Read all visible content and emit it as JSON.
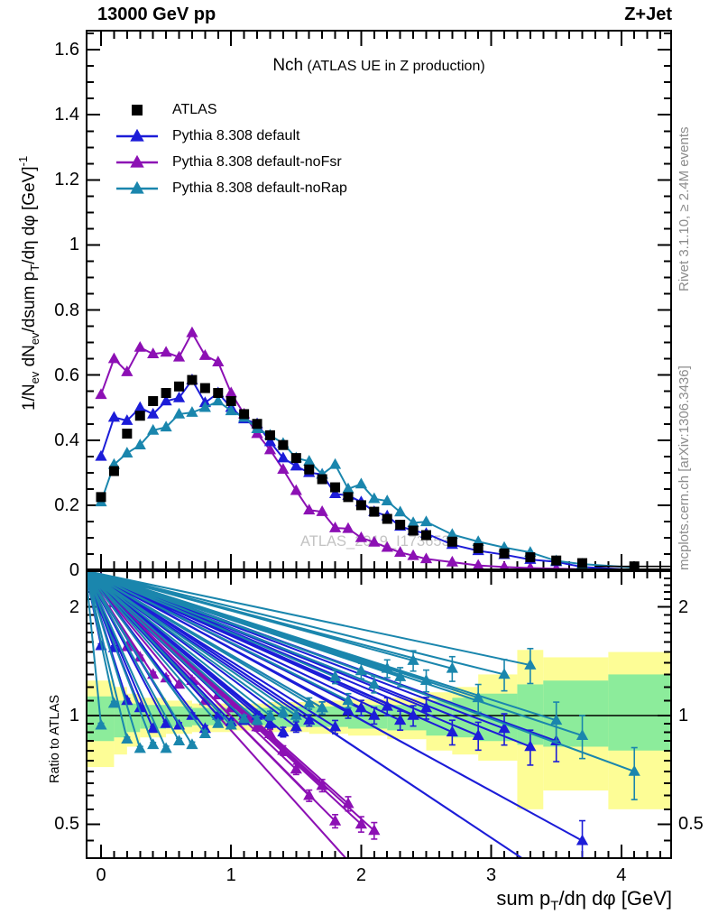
{
  "header": {
    "left": "13000 GeV pp",
    "right": "Z+Jet"
  },
  "title": {
    "main": "Nch",
    "paren": " (ATLAS UE in Z production)"
  },
  "watermark": "ATLAS_2019_I1736531",
  "notes": {
    "rivet": "Rivet 3.1.10, ≥ 2.4M events",
    "mcplots": "mcplots.cern.ch [arXiv:1306.3436]"
  },
  "labels": {
    "ylabel": {
      "pre": "1/N",
      "sub1": "ev",
      "mid1": " dN",
      "sub2": "ev",
      "mid2": "/dsum p",
      "sub3": "T",
      "mid3": "/dη dφ  [GeV]",
      "sup": "-1"
    },
    "xlabel": {
      "pre": "sum p",
      "sub": "T",
      "post": "/dη dφ [GeV]"
    },
    "ratio_label": "Ratio to ATLAS"
  },
  "colors": {
    "blue": "#1c1cd8",
    "purple": "#8c10b4",
    "teal": "#1a86ad",
    "band_yellow": "#fdfd96",
    "band_green": "#8cec9b",
    "gray_note": "#8c8c8c",
    "watermark": "#c3c3c3",
    "black": "#000000"
  },
  "chart_data": {
    "type": "line",
    "title": "Nch (ATLAS UE in Z production)",
    "xlabel": "sum pT/dη dφ [GeV]",
    "ylabel": "1/Nev dNev/dsum pT/dη dφ [GeV]^-1",
    "ratio_ylabel": "Ratio to ATLAS",
    "legend_position": "top-left",
    "x_axis": {
      "lim": [
        -0.12,
        4.39
      ],
      "ticks": [
        0,
        1,
        2,
        3,
        4
      ],
      "tick_labels": [
        "0",
        "1",
        "2",
        "3",
        "4"
      ],
      "minor_step": 0.1
    },
    "main_axis": {
      "lim": [
        0,
        1.66
      ],
      "ticks": [
        0.2,
        0.4,
        0.6,
        0.8,
        1,
        1.2,
        1.4,
        1.6
      ],
      "tick_labels": [
        "0.2",
        "0.4",
        "0.6",
        "0.8",
        "1",
        "1.2",
        "1.4",
        "1.6"
      ],
      "zero_label": "0",
      "minor_step": 0.05,
      "scale": "linear"
    },
    "ratio_axis": {
      "lim": [
        0.4,
        2.51
      ],
      "ticks": [
        0.5,
        1,
        2
      ],
      "tick_labels": [
        "0.5",
        "1",
        "2"
      ],
      "scale": "log"
    },
    "x": [
      0,
      0.1,
      0.2,
      0.3,
      0.4,
      0.5,
      0.6,
      0.7,
      0.8,
      0.9,
      1,
      1.1,
      1.2,
      1.3,
      1.4,
      1.5,
      1.6,
      1.7,
      1.8,
      1.9,
      2,
      2.1,
      2.2,
      2.3,
      2.4,
      2.5,
      2.7,
      2.9,
      3.1,
      3.3,
      3.5,
      3.7,
      4.1
    ],
    "series": [
      {
        "name": "ATLAS",
        "slug": "atlas",
        "color": "#000000",
        "marker": "square",
        "line": false,
        "values": [
          0.225,
          0.305,
          0.42,
          0.475,
          0.52,
          0.545,
          0.565,
          0.585,
          0.56,
          0.545,
          0.52,
          0.48,
          0.45,
          0.415,
          0.385,
          0.345,
          0.31,
          0.28,
          0.255,
          0.225,
          0.2,
          0.18,
          0.158,
          0.14,
          0.122,
          0.108,
          0.088,
          0.068,
          0.052,
          0.04,
          0.03,
          0.022,
          0.012
        ],
        "ratio": null
      },
      {
        "name": "Pythia 8.308 default",
        "slug": "pythia-default",
        "color": "#1c1cd8",
        "marker": "triangle",
        "line": true,
        "values": [
          0.35,
          0.47,
          0.46,
          0.5,
          0.48,
          0.52,
          0.53,
          0.585,
          0.515,
          0.545,
          0.5,
          0.465,
          0.45,
          0.395,
          0.345,
          0.32,
          0.3,
          0.295,
          0.235,
          0.23,
          0.21,
          0.18,
          0.167,
          0.135,
          0.122,
          0.113,
          0.079,
          0.06,
          0.048,
          0.033,
          0.026,
          0.01,
          0.001
        ],
        "ratio": [
          1.56,
          1.54,
          1.1,
          1.05,
          0.92,
          0.95,
          0.94,
          1,
          0.92,
          1,
          0.96,
          0.97,
          1,
          0.95,
          0.9,
          0.93,
          0.97,
          1.05,
          0.93,
          1.03,
          1.05,
          1,
          1.06,
          0.97,
          1,
          1.05,
          0.9,
          0.88,
          0.92,
          0.82,
          0.85,
          0.45,
          0.25
        ]
      },
      {
        "name": "Pythia 8.308 default-noFsr",
        "slug": "pythia-default-nofsr",
        "color": "#8c10b4",
        "marker": "triangle",
        "line": true,
        "values": [
          0.54,
          0.65,
          0.61,
          0.685,
          0.665,
          0.67,
          0.655,
          0.73,
          0.66,
          0.64,
          0.545,
          0.48,
          0.42,
          0.37,
          0.31,
          0.245,
          0.185,
          0.18,
          0.13,
          0.128,
          0.1,
          0.086,
          0.07,
          0.055,
          0.045,
          0.035,
          0.025,
          0.015,
          0.01,
          0.007,
          0.005,
          0.003,
          0.002
        ],
        "ratio": [
          2.4,
          2.05,
          1.55,
          1.45,
          1.3,
          1.27,
          1.22,
          1.25,
          1.1,
          1.14,
          1.05,
          1,
          0.93,
          0.89,
          0.8,
          0.71,
          0.6,
          0.64,
          0.51,
          0.57,
          0.5,
          0.48,
          0.3,
          null,
          null,
          null,
          null,
          null,
          null,
          null,
          null,
          null,
          null
        ]
      },
      {
        "name": "Pythia 8.308 default-noRap",
        "slug": "pythia-default-norap",
        "color": "#1a86ad",
        "marker": "triangle",
        "line": true,
        "values": [
          0.21,
          0.325,
          0.36,
          0.385,
          0.43,
          0.44,
          0.48,
          0.485,
          0.5,
          0.52,
          0.49,
          0.47,
          0.435,
          0.415,
          0.39,
          0.345,
          0.335,
          0.295,
          0.325,
          0.25,
          0.265,
          0.22,
          0.213,
          0.179,
          0.146,
          0.149,
          0.11,
          0.088,
          0.07,
          0.055,
          0.029,
          0.019,
          0.0084
        ],
        "ratio": [
          0.94,
          1.08,
          0.86,
          0.81,
          0.83,
          0.81,
          0.85,
          0.83,
          0.89,
          0.95,
          0.94,
          0.98,
          0.97,
          1,
          1.02,
          1,
          1.08,
          1.05,
          1.28,
          1.1,
          1.33,
          1.22,
          1.35,
          1.28,
          1.42,
          1.25,
          1.35,
          1.12,
          1.3,
          1.38,
          0.97,
          0.88,
          0.7
        ]
      }
    ],
    "bands": [
      {
        "x0": -0.12,
        "x1": 0.1,
        "yellow": [
          0.72,
          1.25
        ],
        "green": [
          0.85,
          1.13
        ]
      },
      {
        "x0": 0.1,
        "x1": 0.2,
        "yellow": [
          0.78,
          1.2
        ],
        "green": [
          0.87,
          1.1
        ]
      },
      {
        "x0": 0.2,
        "x1": 0.3,
        "yellow": [
          0.82,
          1.15
        ],
        "green": [
          0.9,
          1.08
        ]
      },
      {
        "x0": 0.3,
        "x1": 0.5,
        "yellow": [
          0.87,
          1.12
        ],
        "green": [
          0.92,
          1.07
        ]
      },
      {
        "x0": 0.5,
        "x1": 0.7,
        "yellow": [
          0.89,
          1.1
        ],
        "green": [
          0.93,
          1.06
        ]
      },
      {
        "x0": 0.7,
        "x1": 1.0,
        "yellow": [
          0.9,
          1.08
        ],
        "green": [
          0.94,
          1.05
        ]
      },
      {
        "x0": 1.0,
        "x1": 1.3,
        "yellow": [
          0.91,
          1.08
        ],
        "green": [
          0.94,
          1.05
        ]
      },
      {
        "x0": 1.3,
        "x1": 1.6,
        "yellow": [
          0.9,
          1.09
        ],
        "green": [
          0.93,
          1.06
        ]
      },
      {
        "x0": 1.6,
        "x1": 1.9,
        "yellow": [
          0.89,
          1.1
        ],
        "green": [
          0.93,
          1.06
        ]
      },
      {
        "x0": 1.9,
        "x1": 2.2,
        "yellow": [
          0.88,
          1.11
        ],
        "green": [
          0.92,
          1.07
        ]
      },
      {
        "x0": 2.2,
        "x1": 2.5,
        "yellow": [
          0.86,
          1.12
        ],
        "green": [
          0.91,
          1.07
        ]
      },
      {
        "x0": 2.5,
        "x1": 2.7,
        "yellow": [
          0.8,
          1.16
        ],
        "green": [
          0.88,
          1.1
        ]
      },
      {
        "x0": 2.7,
        "x1": 2.9,
        "yellow": [
          0.78,
          1.2
        ],
        "green": [
          0.87,
          1.12
        ]
      },
      {
        "x0": 2.9,
        "x1": 3.2,
        "yellow": [
          0.75,
          1.3
        ],
        "green": [
          0.85,
          1.15
        ]
      },
      {
        "x0": 3.2,
        "x1": 3.4,
        "yellow": [
          0.55,
          1.52
        ],
        "green": [
          0.83,
          1.22
        ]
      },
      {
        "x0": 3.4,
        "x1": 3.9,
        "yellow": [
          0.62,
          1.45
        ],
        "green": [
          0.82,
          1.25
        ]
      },
      {
        "x0": 3.9,
        "x1": 4.39,
        "yellow": [
          0.55,
          1.5
        ],
        "green": [
          0.8,
          1.3
        ]
      }
    ]
  }
}
